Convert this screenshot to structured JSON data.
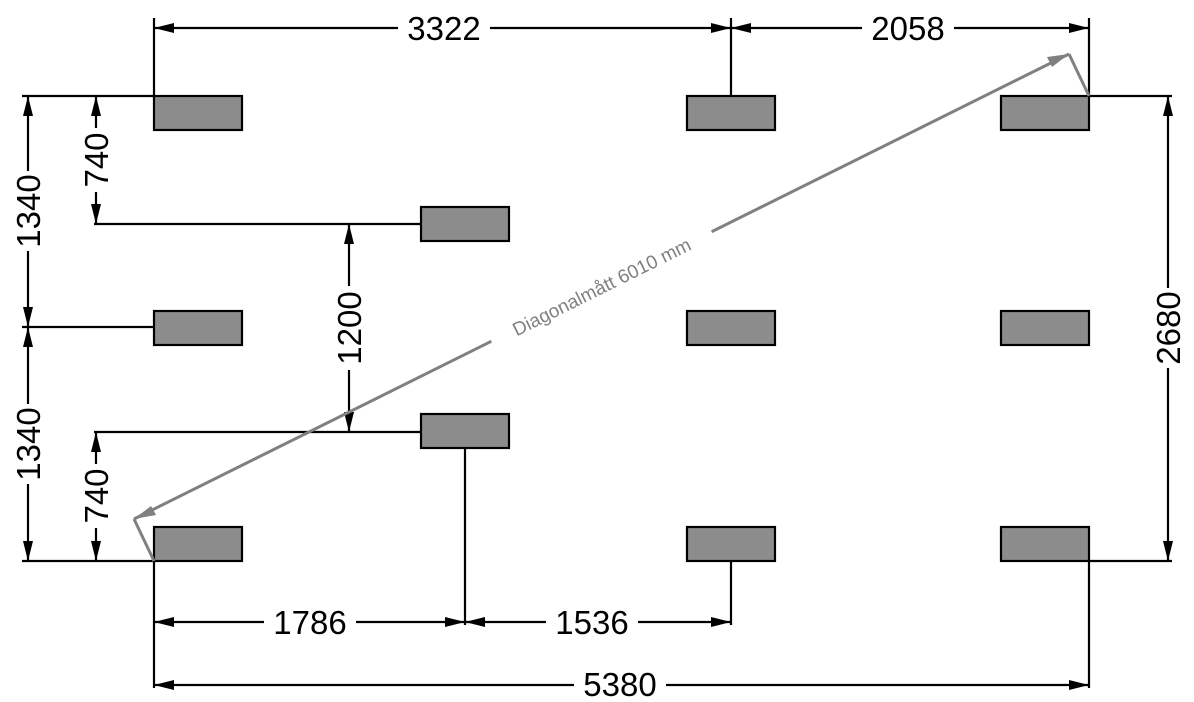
{
  "diagram": {
    "diagonal_label": "Diagonalmått 6010 mm",
    "dimensions": {
      "top_left": "3322",
      "top_right": "2058",
      "bottom_left": "1786",
      "bottom_middle": "1536",
      "bottom_total": "5380",
      "left_upper": "1340",
      "left_lower": "1340",
      "left_upper_inner": "740",
      "left_lower_inner": "740",
      "center_vertical": "1200",
      "right_total": "2680"
    }
  }
}
